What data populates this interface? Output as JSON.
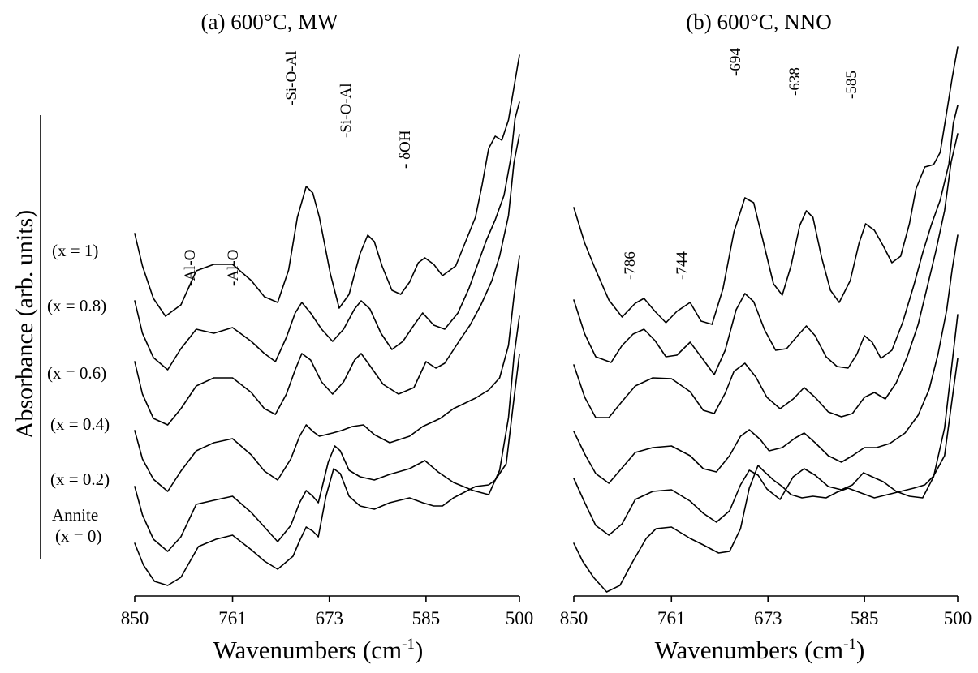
{
  "figure": {
    "ylabel": "Absorbance (arb. units)",
    "sample_labels": [
      "(x = 1)",
      "(x = 0.8)",
      "(x = 0.6)",
      "(x = 0.4)",
      "(x = 0.2)",
      "Annite",
      "(x = 0)"
    ]
  },
  "chart_data": [
    {
      "type": "line",
      "title": "(a) 600°C, MW",
      "xlabel": "Wavenumbers (cm",
      "xlabel_sup": "-1",
      "xlabel_close": ")",
      "ylabel": "Absorbance (arb. units)",
      "xlim": [
        850,
        500
      ],
      "x_reversed": true,
      "xticks": [
        850,
        761,
        673,
        585,
        500
      ],
      "annotations": [
        {
          "text": "-Al-O",
          "x": 790
        },
        {
          "text": "-Al-O",
          "x": 755
        },
        {
          "text": "-Si-O-Al",
          "x": 694
        },
        {
          "text": "-Si-O-Al",
          "x": 645
        },
        {
          "text": "- δOH",
          "x": 592
        }
      ],
      "series": [
        {
          "name": "(x = 1)",
          "peaks": [
            790,
            755,
            694,
            645,
            592
          ]
        },
        {
          "name": "(x = 0.8)",
          "peaks": [
            790,
            755,
            694,
            645,
            592
          ]
        },
        {
          "name": "(x = 0.6)",
          "peaks": [
            790,
            755,
            694,
            645
          ]
        },
        {
          "name": "(x = 0.4)",
          "peaks": [
            761,
            694,
            645
          ]
        },
        {
          "name": "(x = 0.2)",
          "peaks": [
            761,
            665,
            585
          ]
        },
        {
          "name": "Annite (x = 0)",
          "peaks": [
            761,
            665
          ]
        }
      ]
    },
    {
      "type": "line",
      "title": "(b) 600°C, NNO",
      "xlabel": "Wavenumbers (cm",
      "xlabel_sup": "-1",
      "xlabel_close": ")",
      "xlim": [
        850,
        500
      ],
      "x_reversed": true,
      "xticks": [
        850,
        761,
        673,
        585,
        500
      ],
      "annotations": [
        {
          "text": "-786",
          "x": 786
        },
        {
          "text": "-744",
          "x": 744
        },
        {
          "text": "-694",
          "x": 694
        },
        {
          "text": "-638",
          "x": 638
        },
        {
          "text": "-585",
          "x": 585
        }
      ],
      "series": [
        {
          "name": "(x = 1)",
          "peaks": [
            786,
            744,
            694,
            638,
            585
          ]
        },
        {
          "name": "(x = 0.8)",
          "peaks": [
            786,
            744,
            694,
            638,
            585
          ]
        },
        {
          "name": "(x = 0.6)",
          "peaks": [
            786,
            744,
            694,
            638
          ]
        },
        {
          "name": "(x = 0.4)",
          "peaks": [
            761,
            694,
            645
          ]
        },
        {
          "name": "(x = 0.2)",
          "peaks": [
            761,
            665,
            585
          ]
        },
        {
          "name": "Annite (x = 0)",
          "peaks": [
            761,
            665
          ]
        }
      ]
    }
  ]
}
